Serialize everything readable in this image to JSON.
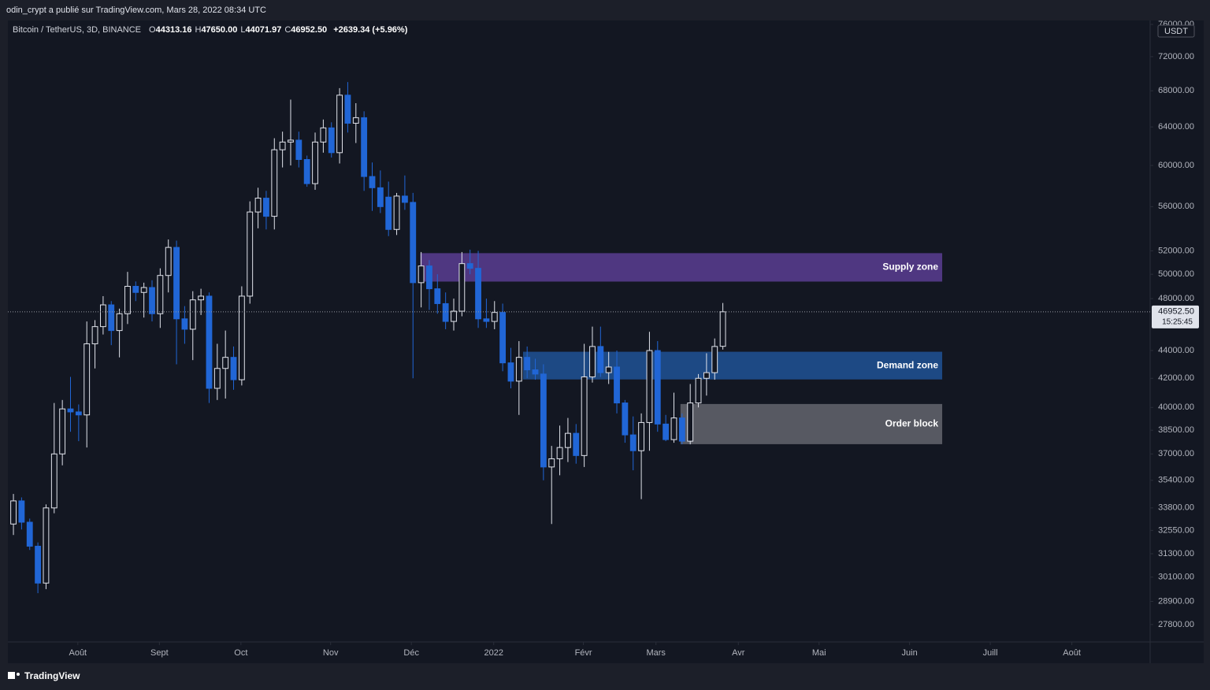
{
  "chart_data": {
    "type": "candlestick",
    "publisher_line": "odin_crypt a publié sur TradingView.com, Mars 28, 2022 08:34 UTC",
    "symbol": "Bitcoin / TetherUS, 3D, BINANCE",
    "ohlc_legend": [
      {
        "key": "O",
        "text": "44313.16"
      },
      {
        "key": "H",
        "text": "47650.00"
      },
      {
        "key": "L",
        "text": "44071.97"
      },
      {
        "key": "C",
        "text": "46952.50"
      }
    ],
    "change_text": "+2639.34 (+5.96%)",
    "currency": "USDT",
    "footer": "TradingView",
    "log_scale": true,
    "up_color": "#e0e3eb",
    "down_color": "#2166d6",
    "open": [
      32900,
      34200,
      33000,
      31700,
      29800,
      33800,
      37000,
      39900,
      39700,
      39500,
      44500,
      45800,
      47500,
      45500,
      46800,
      49000,
      48500,
      48900,
      46800,
      49900,
      52300,
      46400,
      45600,
      47900,
      48200,
      41300,
      42700,
      43500,
      41900,
      48200,
      55500,
      56800,
      55100,
      61600,
      62400,
      62600,
      60600,
      58200,
      62400,
      63900,
      61300,
      67500,
      64400,
      65000,
      58900,
      57800,
      56900,
      53900,
      57000,
      56400,
      49300,
      50700,
      48800,
      47600,
      46200,
      47000,
      50900,
      50500,
      46400,
      46200,
      46900,
      43100,
      41800,
      43500,
      42600,
      42300,
      36200,
      36700,
      37400,
      38300,
      36900,
      42100,
      44300,
      42400,
      42800,
      40300,
      38200,
      37200,
      39000,
      44000,
      38900,
      37900,
      39300,
      37800,
      40300,
      42000,
      42400,
      44313.16
    ],
    "high": [
      34600,
      34400,
      33200,
      31900,
      34000,
      40300,
      40500,
      42100,
      40200,
      46200,
      46300,
      48200,
      47800,
      47200,
      50200,
      49400,
      49300,
      49500,
      50500,
      53000,
      52900,
      47400,
      48600,
      48800,
      48500,
      44500,
      45500,
      44300,
      49000,
      56500,
      57800,
      57500,
      62800,
      63500,
      67000,
      63500,
      61000,
      63400,
      64800,
      64500,
      68300,
      69000,
      66600,
      65700,
      60300,
      59500,
      58400,
      57300,
      59000,
      57300,
      51900,
      51200,
      50000,
      48500,
      48000,
      51900,
      52100,
      52000,
      48000,
      47800,
      47600,
      44200,
      44700,
      44300,
      43400,
      43000,
      37500,
      38800,
      39300,
      38900,
      44500,
      45800,
      45800,
      43900,
      44000,
      40500,
      39400,
      39600,
      45400,
      44700,
      39500,
      41000,
      39600,
      41600,
      42300,
      43800,
      44900,
      47650
    ],
    "low": [
      32300,
      32600,
      31500,
      29300,
      29500,
      33500,
      36300,
      38400,
      37800,
      37400,
      42700,
      45200,
      44400,
      43500,
      46000,
      47800,
      46500,
      46200,
      45700,
      48500,
      43000,
      44500,
      43300,
      46700,
      40300,
      40500,
      40600,
      41200,
      41500,
      47600,
      54000,
      53900,
      53900,
      59800,
      60000,
      59800,
      57900,
      57600,
      61300,
      60800,
      60200,
      63400,
      62300,
      57500,
      55600,
      55400,
      53300,
      53400,
      55700,
      42000,
      47300,
      47100,
      46800,
      45600,
      45500,
      46600,
      50000,
      45700,
      45700,
      45600,
      42500,
      41300,
      39500,
      42000,
      41900,
      35400,
      32900,
      35700,
      36500,
      36400,
      36200,
      41700,
      42100,
      41600,
      39600,
      37700,
      36000,
      34300,
      37200,
      38400,
      37800,
      37700,
      37600,
      37600,
      40000,
      40800,
      41900,
      44071.97
    ],
    "close": [
      34200,
      33000,
      31700,
      29800,
      33800,
      37000,
      39900,
      39700,
      39500,
      44500,
      45800,
      47500,
      45500,
      46800,
      49000,
      48500,
      48900,
      46800,
      49900,
      52300,
      46400,
      45600,
      47900,
      48200,
      41300,
      42700,
      43500,
      41900,
      48200,
      55500,
      56800,
      55100,
      61600,
      62400,
      62600,
      60600,
      58200,
      62400,
      63900,
      61300,
      67500,
      64400,
      65000,
      58900,
      57800,
      56000,
      53900,
      57000,
      56400,
      49300,
      50700,
      48800,
      47600,
      46200,
      47000,
      50900,
      50500,
      46400,
      46200,
      46900,
      43100,
      41800,
      43500,
      42600,
      42300,
      36200,
      36700,
      37400,
      38300,
      36900,
      42100,
      44300,
      42400,
      42800,
      40300,
      38200,
      37200,
      39000,
      44000,
      38900,
      37900,
      39300,
      37800,
      40300,
      42000,
      42400,
      44300,
      46952.5
    ],
    "xlim": [
      -0.68,
      139.4
    ],
    "xticks": [
      {
        "value": 7.9,
        "label": "Août"
      },
      {
        "value": 17.9,
        "label": "Sept"
      },
      {
        "value": 27.9,
        "label": "Oct"
      },
      {
        "value": 38.9,
        "label": "Nov"
      },
      {
        "value": 48.8,
        "label": "Déc"
      },
      {
        "value": 58.9,
        "label": "2022"
      },
      {
        "value": 69.9,
        "label": "Févr"
      },
      {
        "value": 78.8,
        "label": "Mars"
      },
      {
        "value": 88.9,
        "label": "Avr"
      },
      {
        "value": 98.8,
        "label": "Mai"
      },
      {
        "value": 109.9,
        "label": "Juin"
      },
      {
        "value": 119.8,
        "label": "Juill"
      },
      {
        "value": 129.8,
        "label": "Août"
      }
    ],
    "ylim": [
      27000,
      76500
    ],
    "yticks": [
      {
        "value": 27800,
        "label": "27800.00"
      },
      {
        "value": 28900,
        "label": "28900.00"
      },
      {
        "value": 30100,
        "label": "30100.00"
      },
      {
        "value": 31300,
        "label": "31300.00"
      },
      {
        "value": 32550,
        "label": "32550.00"
      },
      {
        "value": 33800,
        "label": "33800.00"
      },
      {
        "value": 35400,
        "label": "35400.00"
      },
      {
        "value": 37000,
        "label": "37000.00"
      },
      {
        "value": 38500,
        "label": "38500.00"
      },
      {
        "value": 40000,
        "label": "40000.00"
      },
      {
        "value": 42000,
        "label": "42000.00"
      },
      {
        "value": 44000,
        "label": "44000.00"
      },
      {
        "value": 48000,
        "label": "48000.00"
      },
      {
        "value": 50000,
        "label": "50000.00"
      },
      {
        "value": 52000,
        "label": "52000.00"
      },
      {
        "value": 56000,
        "label": "56000.00"
      },
      {
        "value": 60000,
        "label": "60000.00"
      },
      {
        "value": 64000,
        "label": "64000.00"
      },
      {
        "value": 68000,
        "label": "68000.00"
      },
      {
        "value": 72000,
        "label": "72000.00"
      },
      {
        "value": 76000,
        "label": "76000.00"
      }
    ],
    "zones": [
      {
        "label": "Supply zone",
        "from": 49390,
        "to": 51800,
        "start": 49.9,
        "end": 113.9,
        "color": "#573b8c"
      },
      {
        "label": "Demand zone",
        "from": 41920,
        "to": 43910,
        "start": 62.5,
        "end": 113.9,
        "color": "#1f4f8f"
      },
      {
        "label": "Order block",
        "from": 37610,
        "to": 40230,
        "start": 81.8,
        "end": 113.9,
        "color": "#5f6169"
      }
    ],
    "last_price": {
      "value": 46952.5,
      "label": "46952.50"
    },
    "countdown": "15:25:45"
  }
}
